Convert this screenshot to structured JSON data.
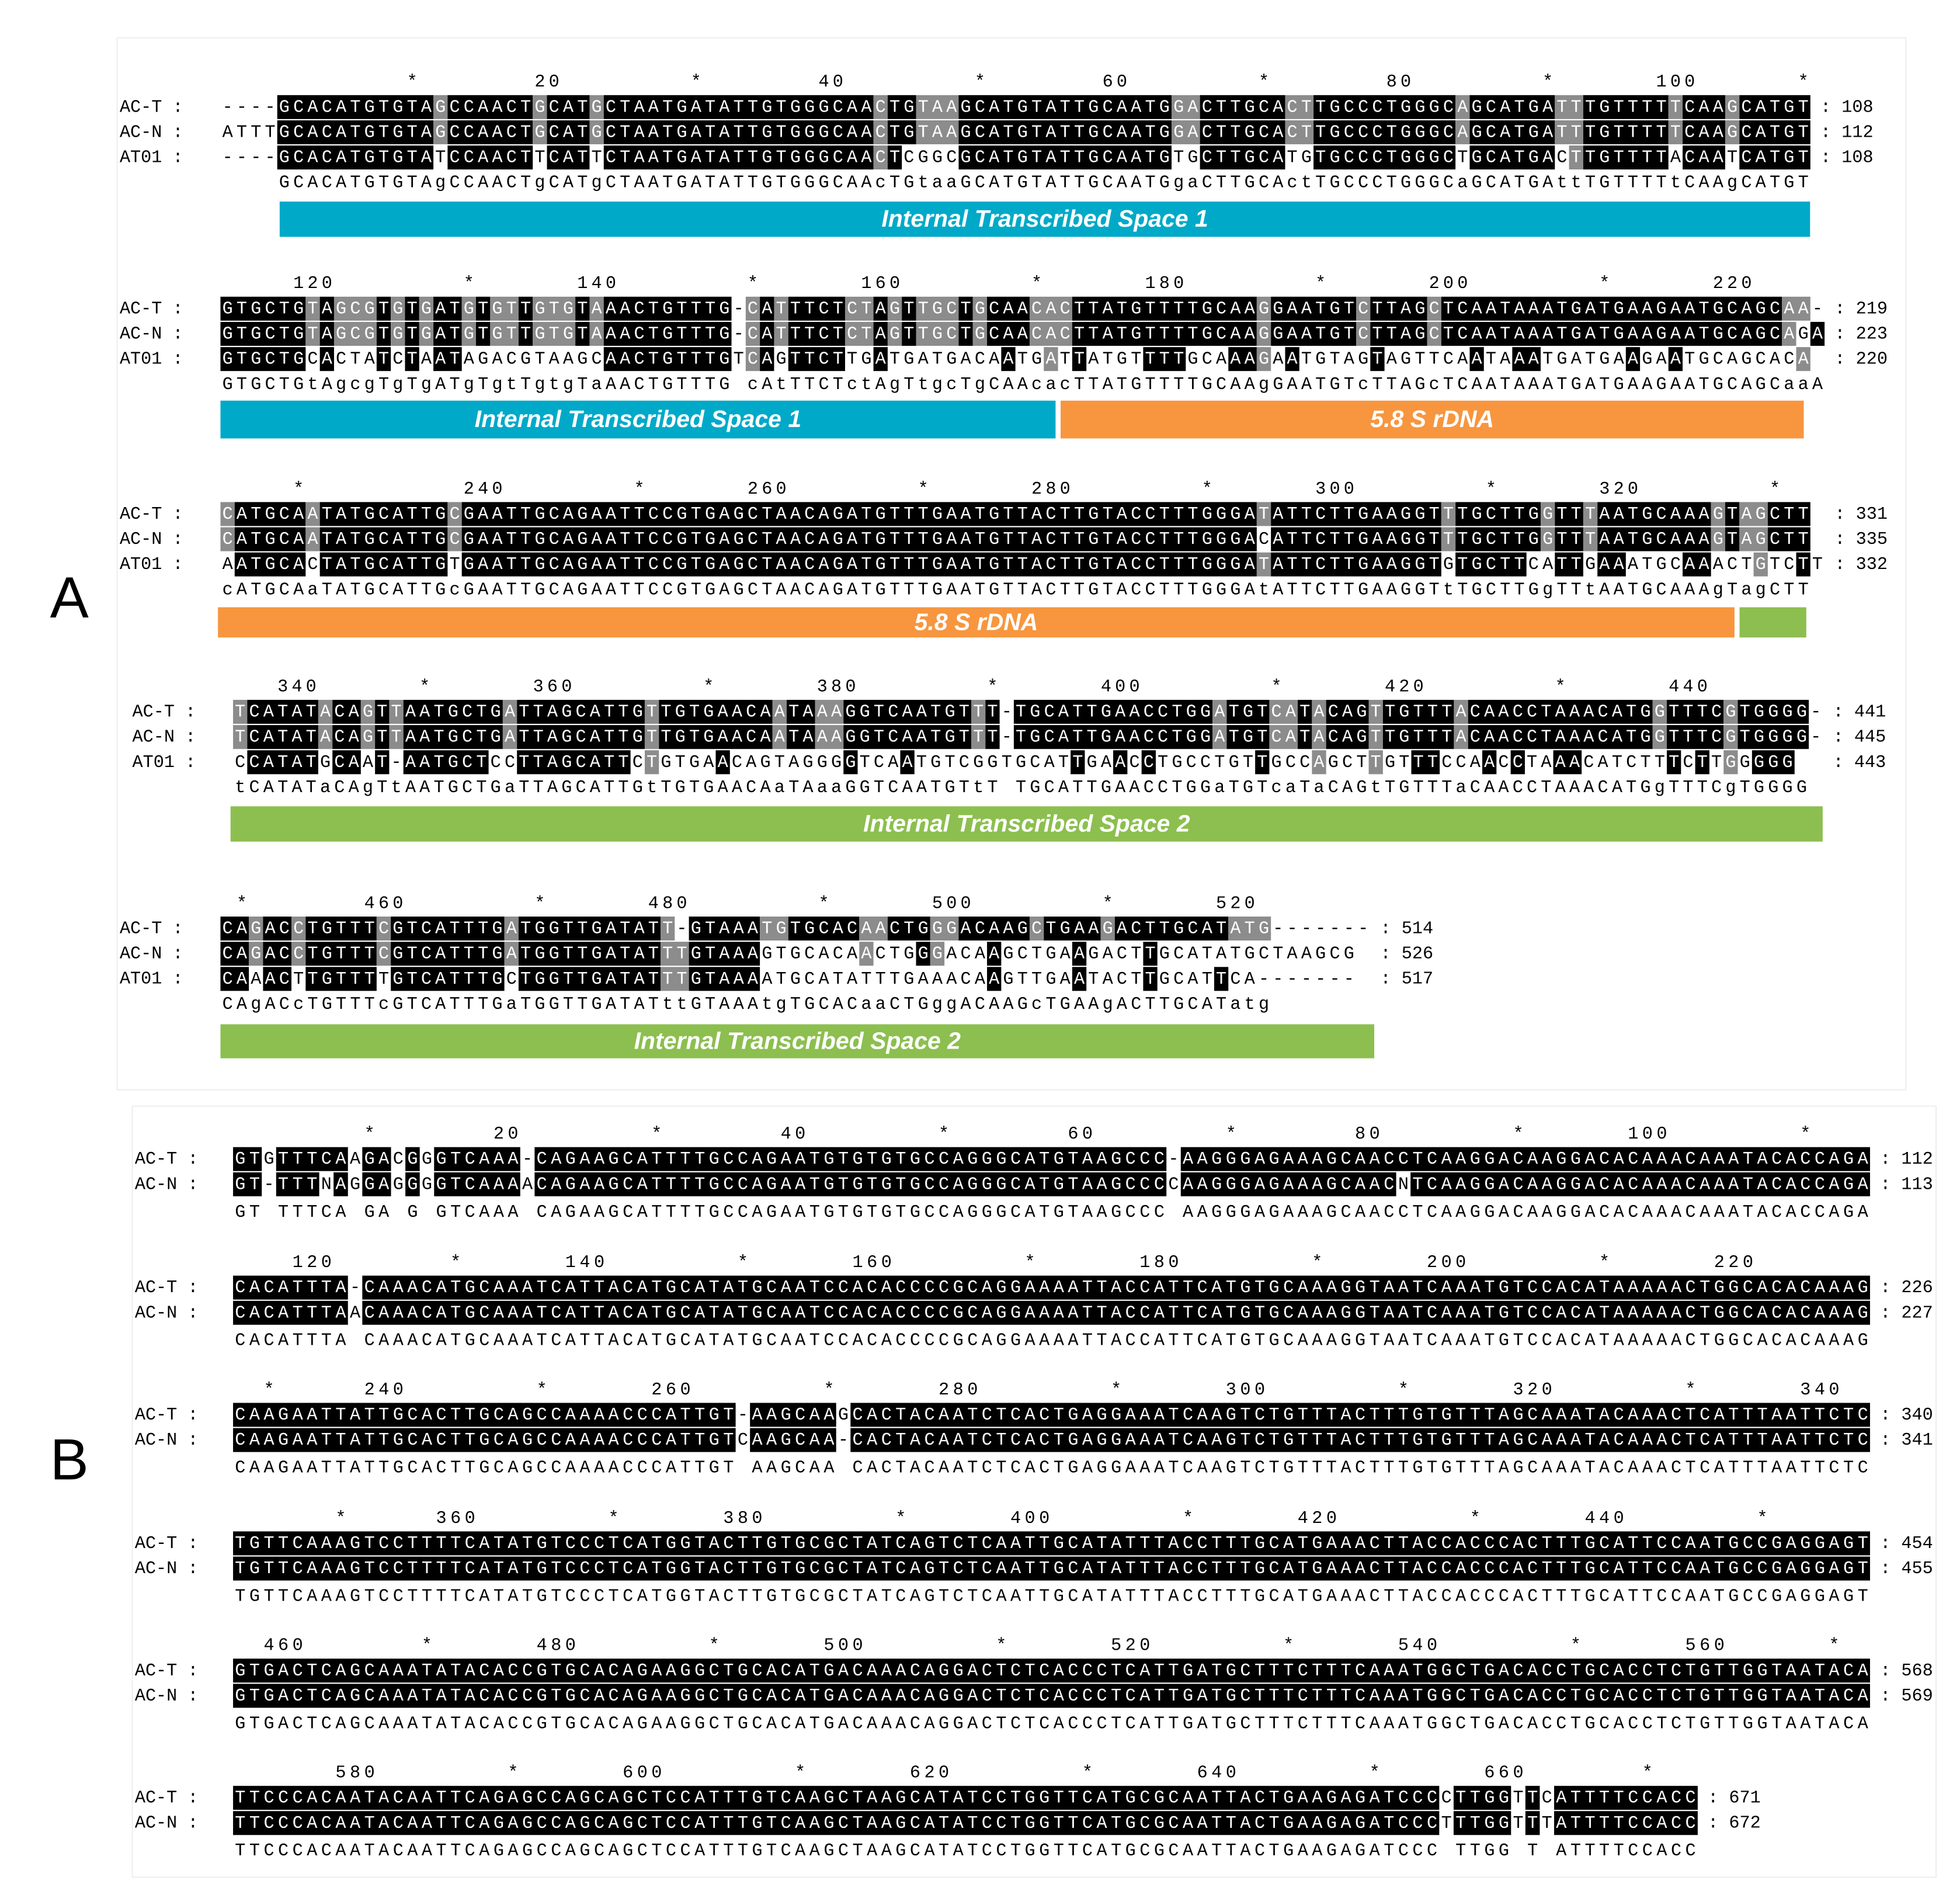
{
  "panels": [
    {
      "label": "A",
      "blocks": [
        {
          "ruler": "             *        20         *        40         *        60         *        80         *       100       *",
          "rows": [
            {
              "name": "AC-T :",
              "seq": "----GCACATGTGTAGCCAACTGCATGCTAATGATATTGTGGGCAACTGTAAGCATGTATTGCAATGGACTTGCACTTGCCCTGGGCAGCATGATTTGTTTTTCAAGCATGT",
              "end": ": 108"
            },
            {
              "name": "AC-N :",
              "seq": "ATTTGCACATGTGTAGCCAACTGCATGCTAATGATATTGTGGGCAACTGTAAGCATGTATTGCAATGGACTTGCACTTGCCCTGGGCAGCATGATTTGTTTTTCAAGCATGT",
              "end": ": 112"
            },
            {
              "name": "AT01 :",
              "seq": "----GCACATGTGTATCCAACTTCATTCTAATGATATTGTGGGCAACTCGGCGCATGTATTGCAATGTGCTTGCATGTGCCCTGGGCTGCATGACTTGTTTTACAATCATGT",
              "end": ": 108"
            }
          ],
          "consensus": "    GCACATGTGTAgCCAACTgCATgCTAATGATATTGTGGGCAAcTGtaaGCATGTATTGCAATGgaCTTGCActTGCCCTGGGCaGCATGAttTGTTTTtCAAgCATGT",
          "bars": [
            {
              "label": "Internal Transcribed Space 1",
              "color": "#00a9c8"
            }
          ]
        },
        {
          "ruler": "     120         *       140         *       160         *       180         *       200         *       220",
          "rows": [
            {
              "name": "AC-T :",
              "seq": "GTGCTGTAGCGTGTGATGTGTTGTGTAAACTGTTTG-CATTTCTCTAGTTGCTGCAACACTTATGTTTTGCAAGGAATGTCTTAGCTCAATAAATGATGAAGAATGCAGCAA-",
              "end": ": 219"
            },
            {
              "name": "AC-N :",
              "seq": "GTGCTGTAGCGTGTGATGTGTTGTGTAAACTGTTTG-CATTTCTCTAGTTGCTGCAACACTTATGTTTTGCAAGGAATGTCTTAGCTCAATAAATGATGAAGAATGCAGCAGA",
              "end": ": 223"
            },
            {
              "name": "AT01 :",
              "seq": "GTGCTGCACTATCTAATAGACGTAAGCAACTGTTTGTCAGTTCTTGATGATGACAATGATTATGTTTTGCAAAGAATGTAGTAGTTCAATAAATGATGAAGAATGCAGCACA",
              "end": ": 220"
            }
          ],
          "consensus": "GTGCTGtAgcgTgTgATgTgtTgtgTaAACTGTTTG cAtTTCTctAgTtgcTgCAAcacTTATGTTTTGCAAgGAATGTcTTAGcTCAATAAATGATGAAGAATGCAGCaaA",
          "bars": [
            {
              "label": "Internal Transcribed Space 1",
              "color": "#00a9c8"
            },
            {
              "label": "5.8 S rDNA",
              "color": "#f7963f"
            }
          ]
        },
        {
          "ruler": "     *           240         *       260         *       280         *       300         *       320         *",
          "rows": [
            {
              "name": "AC-T :",
              "seq": "CATGCAATATGCATTGCGAATTGCAGAATTCCGTGAGCTAACAGATGTTTGAATGTTACTTGTACCTTTGGGATATTCTTGAAGGTTTGCTTGGTTTAATGCAAAGTAGCTT",
              "end": ": 331"
            },
            {
              "name": "AC-N :",
              "seq": "CATGCAATATGCATTGCGAATTGCAGAATTCCGTGAGCTAACAGATGTTTGAATGTTACTTGTACCTTTGGGACATTCTTGAAGGTTTGCTTGGTTTAATGCAAAGTAGCTT",
              "end": ": 335"
            },
            {
              "name": "AT01 :",
              "seq": "AATGCACTATGCATTGTGAATTGCAGAATTCCGTGAGCTAACAGATGTTTGAATGTTACTTGTACCTTTGGGATATTCTTGAAGGTGTGCTTCATTGAAATGCAAACTGTCTT",
              "end": ": 332"
            }
          ],
          "consensus": "cATGCAaTATGCATTGcGAATTGCAGAATTCCGTGAGCTAACAGATGTTTGAATGTTACTTGTACCTTTGGGAtATTCTTGAAGGTtTGCTTGgTTtAATGCAAAgTagCTT",
          "bars": [
            {
              "label": "5.8 S rDNA",
              "color": "#f7963f"
            },
            {
              "color": "#8cbf4f"
            }
          ]
        },
        {
          "ruler": "   340       *       360         *       380         *       400         *       420         *       440",
          "rows": [
            {
              "name": "AC-T :",
              "seq": "TCATATACAGTTAATGCTGATTAGCATTGTTGTGAACAATAAAGGTCAATGTTT-TGCATTGAACCTGGATGTCATACAGTTGTTTACAACCTAAACATGGTTTCGTGGGG-",
              "end": ": 441"
            },
            {
              "name": "AC-N :",
              "seq": "TCATATACAGTTAATGCTGATTAGCATTGTTGTGAACAATAAAGGTCAATGTTT-TGCATTGAACCTGGATGTCATACAGTTGTTTACAACCTAAACATGGTTTCGTGGGG-",
              "end": ": 445"
            },
            {
              "name": "AT01 :",
              "seq": "CCATATGCAAT-AATGCTCCTTAGCATTCTGTGAACAGTAGGGGTCAATGTCGGTGCATTGAACCTGCCTGTTGCCAGCTTGTTTCCAACCTAAACATCTTTCTTGGGGG",
              "end": ": 443"
            }
          ],
          "consensus": "tCATATaCAgTtAATGCTGaTTAGCATTGtTGTGAACAaTAaaGGTCAATGTtT TGCATTGAACCTGGaTGTcaTaCAGtTGTTTaCAACCTAAACATGgTTTCgTGGGG",
          "bars": [
            {
              "label": "Internal Transcribed Space 2",
              "color": "#8cbf4f"
            }
          ]
        },
        {
          "ruler": " *        460         *       480         *       500         *       520",
          "rows": [
            {
              "name": "AC-T :",
              "seq": "CAGACCTGTTTCGTCATTTGATGGTTGATATT-GTAAATGTGCACAACTGGGACAAGCTGAAGACTTGCATATG-------",
              "end": ": 514"
            },
            {
              "name": "AC-N :",
              "seq": "CAGACCTGTTTCGTCATTTGATGGTTGATATTTGTAAAGTGCACAACTGGGACAAGCTGAAGACTTGCATATGCTAAGCG",
              "end": ": 526"
            },
            {
              "name": "AT01 :",
              "seq": "CAAACTTGTTTTGTCATTTGCTGGTTGATATTTGTAAAATGCATATTTGAAACAAGTTGAATACTTGCATTCA-------",
              "end": ": 517"
            }
          ],
          "consensus": "CAgACcTGTTTcGTCATTTGaTGGTTGATATttGTAAAtgTGCACaaCTGggACAAGcTGAAgACTTGCATatg",
          "bars": [
            {
              "label": "Internal Transcribed Space 2",
              "color": "#8cbf4f"
            }
          ]
        }
      ]
    },
    {
      "label": "B",
      "blocks": [
        {
          "ruler": "         *        20         *        40         *        60         *        80         *       100         *",
          "rows": [
            {
              "name": "AC-T :",
              "seq": "GTGTTTCAAGACGGGTCAAA-CAGAAGCATTTTGCCAGAATGTGTGTGCCAGGGCATGTAAGCCC-AAGGGAGAAAGCAACCTCAAGGACAAGGACACAAACAAATACACCAGA",
              "end": ": 112"
            },
            {
              "name": "AC-N :",
              "seq": "GT-TTTNAGGAGGGGTCAAAACAGAAGCATTTTGCCAGAATGTGTGTGCCAGGGCATGTAAGCCCCAAGGGAGAAAGCAACNTCAAGGACAAGGACACAAACAAATACACCAGA",
              "end": ": 113"
            }
          ],
          "consensus": "GT TTTCA GA G GTCAAA CAGAAGCATTTTGCCAGAATGTGTGTGCCAGGGCATGTAAGCCC AAGGGAGAAAGCAACCTCAAGGACAAGGACACAAACAAATACACCAGA"
        },
        {
          "ruler": "    120        *       140         *       160         *       180         *       200         *       220",
          "rows": [
            {
              "name": "AC-T :",
              "seq": "CACATTTA-CAAACATGCAAATCATTACATGCATATGCAATCCACACCCCGCAGGAAAATTACCATTCATGTGCAAAGGTAATCAAATGTCCACATAAAAACTGGCACACAAAG",
              "end": ": 226"
            },
            {
              "name": "AC-N :",
              "seq": "CACATTTAACAAACATGCAAATCATTACATGCATATGCAATCCACACCCCGCAGGAAAATTACCATTCATGTGCAAAGGTAATCAAATGTCCACATAAAAACTGGCACACAAAG",
              "end": ": 227"
            }
          ],
          "consensus": "CACATTTA CAAACATGCAAATCATTACATGCATATGCAATCCACACCCCGCAGGAAAATTACCATTCATGTGCAAAGGTAATCAAATGTCCACATAAAAACTGGCACACAAAG"
        },
        {
          "ruler": "  *      240         *       260         *       280         *       300         *       320         *       340",
          "rows": [
            {
              "name": "AC-T :",
              "seq": "CAAGAATTATTGCACTTGCAGCCAAAACCCATTGT-AAGCAAGCACTACAATCTCACTGAGGAAATCAAGTCTGTTTACTTTGTGTTTAGCAAATACAAACTCATTTAATTCTC",
              "end": ": 340"
            },
            {
              "name": "AC-N :",
              "seq": "CAAGAATTATTGCACTTGCAGCCAAAACCCATTGTCAAGCAA-CACTACAATCTCACTGAGGAAATCAAGTCTGTTTACTTTGTGTTTAGCAAATACAAACTCATTTAATTCTC",
              "end": ": 341"
            }
          ],
          "consensus": "CAAGAATTATTGCACTTGCAGCCAAAACCCATTGT AAGCAA CACTACAATCTCACTGAGGAAATCAAGTCTGTTTACTTTGTGTTTAGCAAATACAAACTCATTTAATTCTC"
        },
        {
          "ruler": "       *      360         *       380         *       400         *       420         *       440         *",
          "rows": [
            {
              "name": "AC-T :",
              "seq": "TGTTCAAAGTCCTTTTCATATGTCCCTCATGGTACTTGTGCGCTATCAGTCTCAATTGCATATTTACCTTTGCATGAAACTTACCACCCACTTTGCATTCCAATGCCGAGGAGT",
              "end": ": 454"
            },
            {
              "name": "AC-N :",
              "seq": "TGTTCAAAGTCCTTTTCATATGTCCCTCATGGTACTTGTGCGCTATCAGTCTCAATTGCATATTTACCTTTGCATGAAACTTACCACCCACTTTGCATTCCAATGCCGAGGAGT",
              "end": ": 455"
            }
          ],
          "consensus": "TGTTCAAAGTCCTTTTCATATGTCCCTCATGGTACTTGTGCGCTATCAGTCTCAATTGCATATTTACCTTTGCATGAAACTTACCACCCACTTTGCATTCCAATGCCGAGGAGT"
        },
        {
          "ruler": "  460        *       480         *       500         *       520         *       540         *       560       *",
          "rows": [
            {
              "name": "AC-T :",
              "seq": "GTGACTCAGCAAATATACACCGTGCACAGAAGGCTGCACATGACAAACAGGACTCTCACCCTCATTGATGCTTTCTTTCAAATGGCTGACACCTGCACCTCTGTTGGTAATACA",
              "end": ": 568"
            },
            {
              "name": "AC-N :",
              "seq": "GTGACTCAGCAAATATACACCGTGCACAGAAGGCTGCACATGACAAACAGGACTCTCACCCTCATTGATGCTTTCTTTCAAATGGCTGACACCTGCACCTCTGTTGGTAATACA",
              "end": ": 569"
            }
          ],
          "consensus": "GTGACTCAGCAAATATACACCGTGCACAGAAGGCTGCACATGACAAACAGGACTCTCACCCTCATTGATGCTTTCTTTCAAATGGCTGACACCTGCACCTCTGTTGGTAATACA"
        },
        {
          "ruler": "       580         *       600         *       620         *       640         *       660        *",
          "rows": [
            {
              "name": "AC-T :",
              "seq": "TTCCCACAATACAATTCAGAGCCAGCAGCTCCATTTGTCAAGCTAAGCATATCCTGGTTCATGCGCAATTACTGAAGAGATCCCCTTGGTTCATTTTCCACC",
              "end": ": 671"
            },
            {
              "name": "AC-N :",
              "seq": "TTCCCACAATACAATTCAGAGCCAGCAGCTCCATTTGTCAAGCTAAGCATATCCTGGTTCATGCGCAATTACTGAAGAGATCCCTTTGGTTTATTTTCCACC",
              "end": ": 672"
            }
          ],
          "consensus": "TTCCCACAATACAATTCAGAGCCAGCAGCTCCATTTGTCAAGCTAAGCATATCCTGGTTCATGCGCAATTACTGAAGAGATCCC TTGG T ATTTTCCACC"
        }
      ]
    }
  ]
}
